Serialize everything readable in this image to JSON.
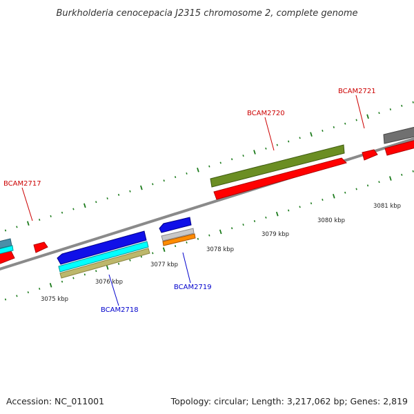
{
  "title": "Burkholderia cenocepacia J2315 chromosome 2, complete genome",
  "footer": {
    "accession": "Accession: NC_011001",
    "stats": "Topology: circular; Length: 3,217,062 bp; Genes: 2,819"
  },
  "colors": {
    "forward_label": "#cc0000",
    "reverse_label": "#0000cc",
    "tick": "#1a7a1a",
    "backbone": "#8a8a8a",
    "red_cds": "#ff0000",
    "olive_gene": "#6b8e23",
    "blue_gene": "#1010e8",
    "cyan_gene": "#00ffff",
    "khaki_gene": "#bdb76b",
    "orange_gene": "#ff8c00",
    "grey_gene": "#707070",
    "silver_gene": "#c8c8c8",
    "teal_gene": "#4a8fa8"
  },
  "scale_labels": [
    "3075 kbp",
    "3076 kbp",
    "3077 kbp",
    "3078 kbp",
    "3079 kbp",
    "3080 kbp",
    "3081 kbp"
  ],
  "gene_labels": {
    "bcam2717": "BCAM2717",
    "bcam2718": "BCAM2718",
    "bcam2719": "BCAM2719",
    "bcam2720": "BCAM2720",
    "bcam2721": "BCAM2721"
  }
}
